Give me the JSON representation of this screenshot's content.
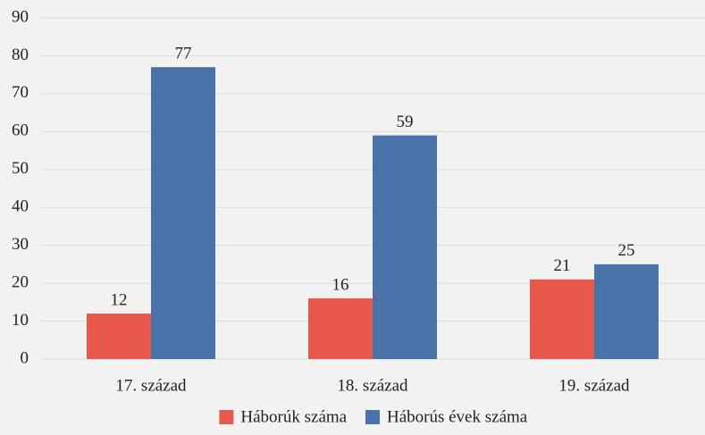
{
  "chart_data": {
    "type": "bar",
    "categories": [
      "17. század",
      "18. század",
      "19. század"
    ],
    "series": [
      {
        "name": "Háborúk száma",
        "color": "#e8594b",
        "values": [
          12,
          16,
          21
        ]
      },
      {
        "name": "Háborús évek száma",
        "color": "#4a72a8",
        "values": [
          77,
          59,
          25
        ]
      }
    ],
    "ylim": [
      0,
      90
    ],
    "yticks": [
      0,
      10,
      20,
      30,
      40,
      50,
      60,
      70,
      80,
      90
    ],
    "grid": true,
    "legend": "bottom"
  }
}
